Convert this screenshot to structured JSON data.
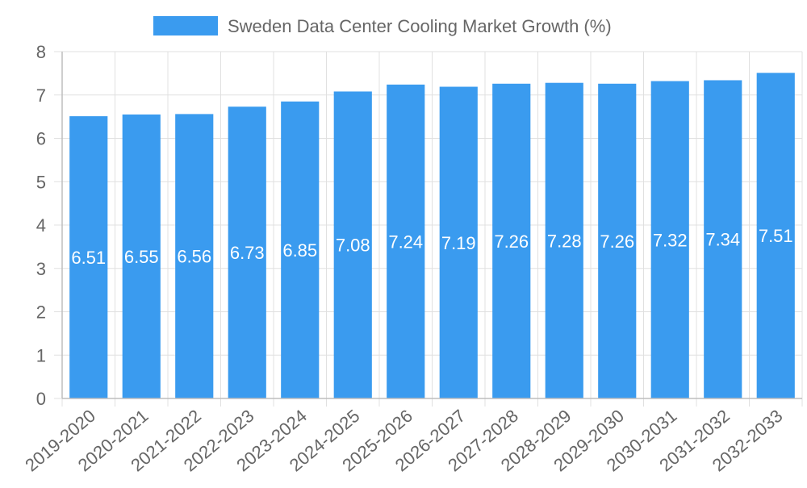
{
  "chart_data": {
    "type": "bar",
    "title": "",
    "xlabel": "",
    "ylabel": "",
    "categories": [
      "2019-2020",
      "2020-2021",
      "2021-2022",
      "2022-2023",
      "2023-2024",
      "2024-2025",
      "2025-2026",
      "2026-2027",
      "2027-2028",
      "2028-2029",
      "2029-2030",
      "2030-2031",
      "2031-2032",
      "2032-2033"
    ],
    "series": [
      {
        "name": "Sweden Data Center Cooling Market Growth (%)",
        "values": [
          6.51,
          6.55,
          6.56,
          6.73,
          6.85,
          7.08,
          7.24,
          7.19,
          7.26,
          7.28,
          7.26,
          7.32,
          7.34,
          7.51
        ],
        "color": "#3a9bef"
      }
    ],
    "ylim": [
      0,
      8
    ],
    "yticks": [
      0,
      1,
      2,
      3,
      4,
      5,
      6,
      7,
      8
    ],
    "grid": true,
    "legend_position": "top-center",
    "data_labels": true,
    "data_label_color": "#ffffff",
    "tick_label_color": "#666666",
    "grid_color": "#e0e0e0",
    "axis_color": "#bdbdbd"
  }
}
